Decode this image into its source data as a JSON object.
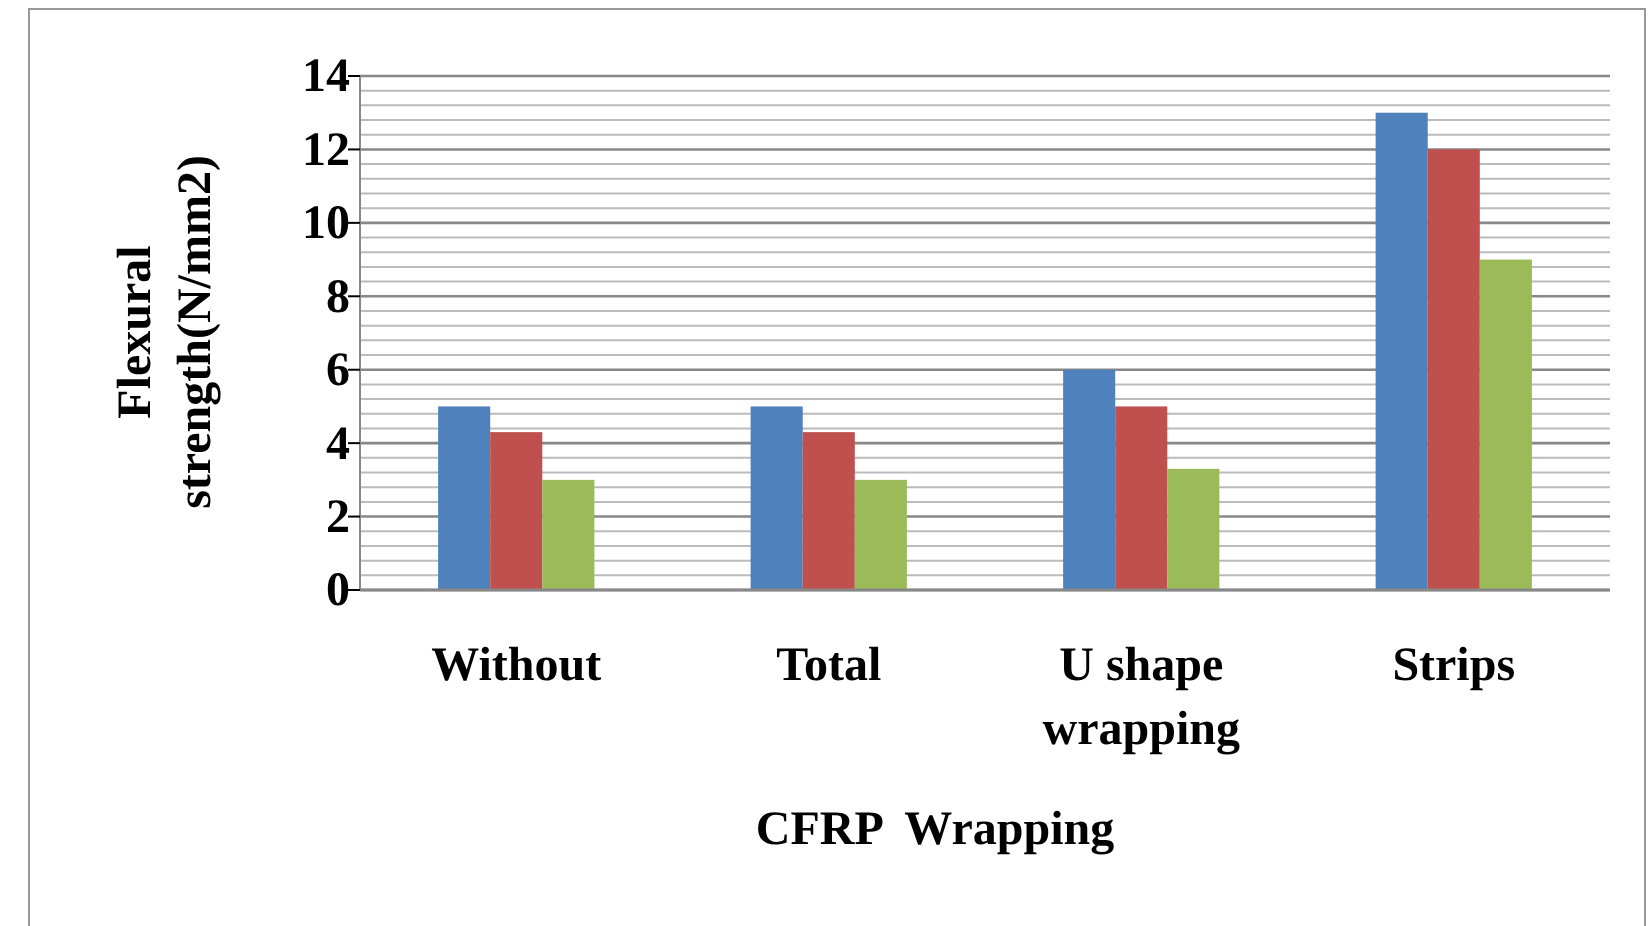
{
  "chart_data": {
    "type": "bar",
    "xlabel": "CFRP  Wrapping",
    "ylabel": "Flexural strength(N/mm2)",
    "categories": [
      "Without",
      "Total",
      "U shape wrapping",
      "Strips"
    ],
    "series": [
      {
        "color": "#4f81bd",
        "values": [
          5,
          5,
          6,
          13
        ]
      },
      {
        "color": "#c0504d",
        "values": [
          4.3,
          4.3,
          5,
          12
        ]
      },
      {
        "color": "#9bbb59",
        "values": [
          3,
          3,
          3.3,
          9
        ]
      }
    ],
    "ylim": [
      0,
      14
    ],
    "yticks": [
      0,
      {
        "value": 0.4,
        "label": null
      },
      {
        "value": 0.8,
        "label": null
      },
      {
        "value": 1.2,
        "label": null
      },
      {
        "value": 1.6,
        "label": null
      },
      2,
      {
        "value": 2.4,
        "label": null
      },
      {
        "value": 2.8,
        "label": null
      },
      {
        "value": 3.2,
        "label": null
      },
      {
        "value": 3.6,
        "label": null
      },
      4,
      {
        "value": 4.4,
        "label": null
      },
      {
        "value": 4.8,
        "label": null
      },
      {
        "value": 5.2,
        "label": null
      },
      {
        "value": 5.6,
        "label": null
      },
      6,
      {
        "value": 6.4,
        "label": null
      },
      {
        "value": 6.8,
        "label": null
      },
      {
        "value": 7.2,
        "label": null
      },
      {
        "value": 7.6,
        "label": null
      },
      8,
      {
        "value": 8.4,
        "label": null
      },
      {
        "value": 8.8,
        "label": null
      },
      {
        "value": 9.2,
        "label": null
      },
      {
        "value": 9.6,
        "label": null
      },
      10,
      {
        "value": 10.4,
        "label": null
      },
      {
        "value": 10.8,
        "label": null
      },
      {
        "value": 11.2,
        "label": null
      },
      {
        "value": 11.6,
        "label": null
      },
      12,
      {
        "value": 12.4,
        "label": null
      },
      {
        "value": 12.8,
        "label": null
      },
      {
        "value": 13.2,
        "label": null
      },
      {
        "value": 13.6,
        "label": null
      },
      14
    ],
    "grid": true
  }
}
